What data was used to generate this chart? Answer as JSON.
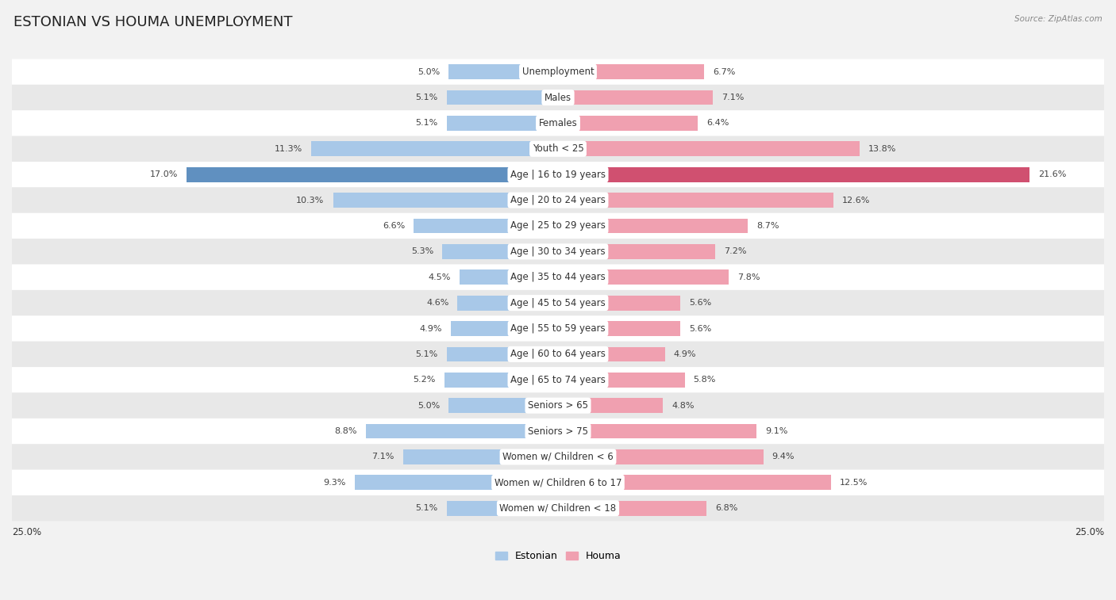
{
  "title": "ESTONIAN VS HOUMA UNEMPLOYMENT",
  "source": "Source: ZipAtlas.com",
  "categories": [
    "Unemployment",
    "Males",
    "Females",
    "Youth < 25",
    "Age | 16 to 19 years",
    "Age | 20 to 24 years",
    "Age | 25 to 29 years",
    "Age | 30 to 34 years",
    "Age | 35 to 44 years",
    "Age | 45 to 54 years",
    "Age | 55 to 59 years",
    "Age | 60 to 64 years",
    "Age | 65 to 74 years",
    "Seniors > 65",
    "Seniors > 75",
    "Women w/ Children < 6",
    "Women w/ Children 6 to 17",
    "Women w/ Children < 18"
  ],
  "estonian": [
    5.0,
    5.1,
    5.1,
    11.3,
    17.0,
    10.3,
    6.6,
    5.3,
    4.5,
    4.6,
    4.9,
    5.1,
    5.2,
    5.0,
    8.8,
    7.1,
    9.3,
    5.1
  ],
  "houma": [
    6.7,
    7.1,
    6.4,
    13.8,
    21.6,
    12.6,
    8.7,
    7.2,
    7.8,
    5.6,
    5.6,
    4.9,
    5.8,
    4.8,
    9.1,
    9.4,
    12.5,
    6.8
  ],
  "estonian_color": "#a8c8e8",
  "houma_color": "#f0a0b0",
  "estonian_highlight_color": "#6090c0",
  "houma_highlight_color": "#d05070",
  "background_color": "#f2f2f2",
  "row_white_color": "#ffffff",
  "row_gray_color": "#e8e8e8",
  "max_value": 25.0,
  "legend_estonian": "Estonian",
  "legend_houma": "Houma",
  "title_fontsize": 13,
  "label_fontsize": 8.5,
  "value_fontsize": 8.0,
  "source_fontsize": 7.5
}
